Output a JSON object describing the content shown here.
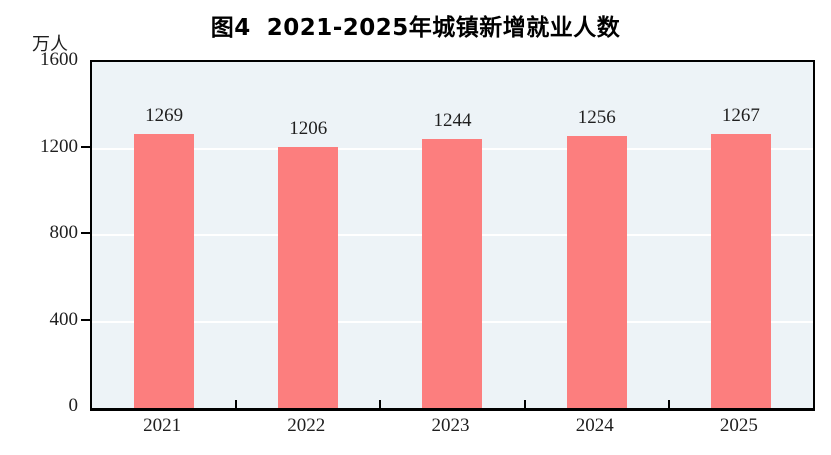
{
  "figure": {
    "title_prefix": "图4",
    "title_text": "2021-2025年城镇新增就业人数",
    "unit_label": "万人"
  },
  "chart_data": {
    "type": "bar",
    "title": "图4 2021-2025年城镇新增就业人数",
    "categories": [
      "2021",
      "2022",
      "2023",
      "2024",
      "2025"
    ],
    "values": [
      1269,
      1206,
      1244,
      1256,
      1267
    ],
    "xlabel": "",
    "ylabel": "万人",
    "ylim": [
      0,
      1600
    ],
    "yticks": [
      0,
      400,
      800,
      1200,
      1600
    ],
    "gridline_values": [
      400,
      800,
      1200
    ],
    "grid": "on",
    "legend_position": "none",
    "data_labels": [
      1269,
      1206,
      1244,
      1256,
      1267
    ],
    "colors": {
      "bar": "#FC7E7E",
      "plot_background": "#EDF3F7",
      "gridline": "#FFFFFF",
      "axis": "#000000",
      "text": "#1F1F1F"
    }
  }
}
